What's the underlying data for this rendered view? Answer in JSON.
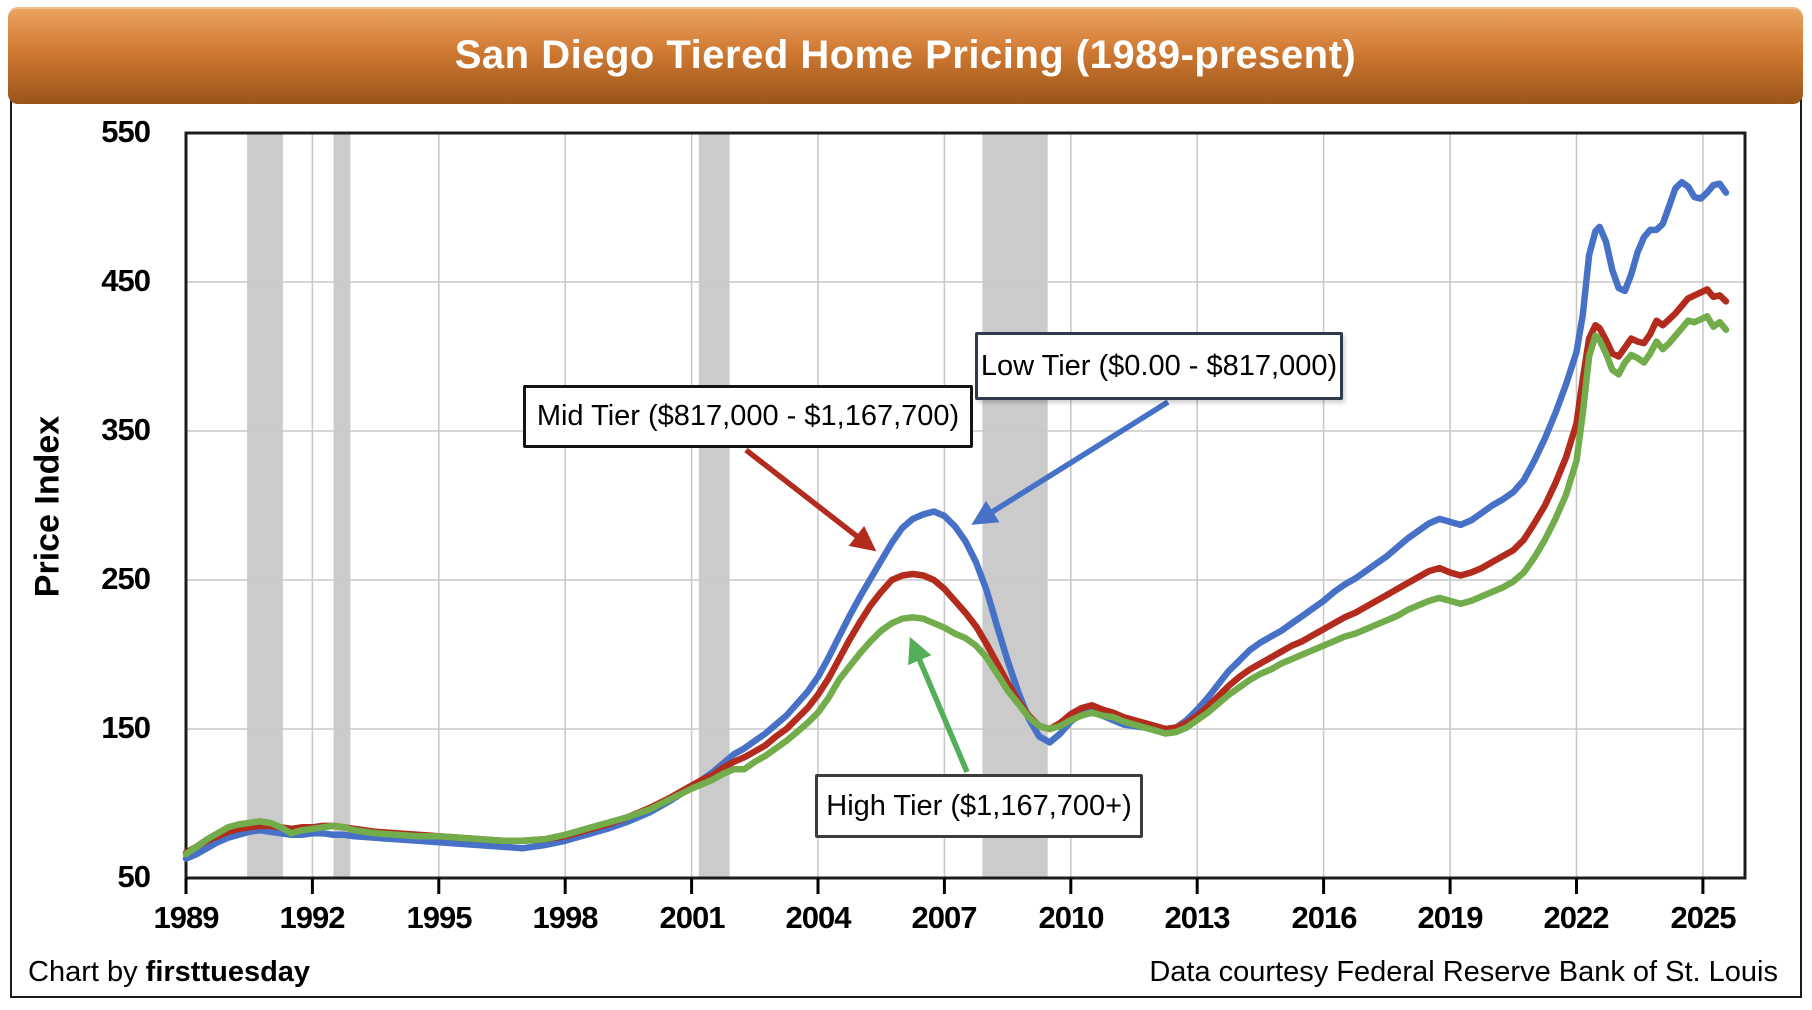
{
  "title": "San Diego Tiered Home Pricing (1989-present)",
  "footer": {
    "left_prefix": "Chart by ",
    "left_brand": "firsttuesday",
    "right": "Data courtesy Federal Reserve Bank of St. Louis"
  },
  "colors": {
    "low": "#4671C6",
    "mid": "#B22B1D",
    "high": "#72AC4B",
    "arrow_green": "#55AF5A",
    "band": "#CBCBCB",
    "grid": "#C9C9C9",
    "frame": "#1C1C1C",
    "banner_top": "#EDA463",
    "banner_mid": "#D07A33",
    "banner_bottom": "#9A5419"
  },
  "chart_data": {
    "type": "line",
    "title": "San Diego Tiered Home Pricing (1989-present)",
    "xlabel": "",
    "ylabel": "Price Index",
    "xlim": [
      1989,
      2026
    ],
    "ylim": [
      50,
      550
    ],
    "x_ticks": [
      1989,
      1992,
      1995,
      1998,
      2001,
      2004,
      2007,
      2010,
      2013,
      2016,
      2019,
      2022,
      2025
    ],
    "y_ticks": [
      50,
      150,
      250,
      350,
      450,
      550
    ],
    "grid": true,
    "legend_position": "annotation-boxes",
    "recession_bands": [
      [
        1990.45,
        1991.3
      ],
      [
        1992.5,
        1992.9
      ],
      [
        2001.17,
        2001.9
      ],
      [
        2007.9,
        2009.45
      ]
    ],
    "series": [
      {
        "key": "low",
        "name": "Low Tier ($0.00 - $817,000)"
      },
      {
        "key": "mid",
        "name": "Mid Tier ($817,000 - $1,167,700)"
      },
      {
        "key": "high",
        "name": "High Tier ($1,167,700+)"
      }
    ],
    "points_format": [
      "year",
      "low",
      "mid",
      "high"
    ],
    "points": [
      [
        1989.0,
        63,
        67,
        66
      ],
      [
        1989.25,
        66,
        71,
        71
      ],
      [
        1989.5,
        70,
        75,
        76
      ],
      [
        1989.75,
        74,
        78,
        80
      ],
      [
        1990.0,
        77,
        81,
        84
      ],
      [
        1990.25,
        79,
        83,
        86
      ],
      [
        1990.5,
        81,
        84,
        87
      ],
      [
        1990.75,
        82,
        85,
        88
      ],
      [
        1991.0,
        81,
        85,
        87
      ],
      [
        1991.25,
        80,
        84,
        84
      ],
      [
        1991.5,
        79,
        83,
        80
      ],
      [
        1991.75,
        79,
        84,
        82
      ],
      [
        1992.0,
        80,
        84,
        83
      ],
      [
        1992.25,
        80,
        85,
        84
      ],
      [
        1992.5,
        79,
        85,
        85
      ],
      [
        1992.75,
        79,
        84,
        84
      ],
      [
        1993.0,
        78,
        83,
        82
      ],
      [
        1993.5,
        77,
        81,
        80
      ],
      [
        1994.0,
        76,
        80,
        79
      ],
      [
        1994.5,
        75,
        79,
        78
      ],
      [
        1995.0,
        74,
        78,
        78
      ],
      [
        1995.5,
        73,
        77,
        77
      ],
      [
        1996.0,
        72,
        76,
        76
      ],
      [
        1996.5,
        71,
        75,
        75
      ],
      [
        1997.0,
        70,
        75,
        75
      ],
      [
        1997.5,
        72,
        76,
        76
      ],
      [
        1998.0,
        75,
        78,
        79
      ],
      [
        1998.5,
        79,
        82,
        83
      ],
      [
        1999.0,
        83,
        86,
        87
      ],
      [
        1999.5,
        88,
        91,
        91
      ],
      [
        2000.0,
        94,
        97,
        96
      ],
      [
        2000.5,
        102,
        104,
        103
      ],
      [
        2001.0,
        111,
        112,
        110
      ],
      [
        2001.25,
        116,
        116,
        113
      ],
      [
        2001.5,
        121,
        119,
        116
      ],
      [
        2001.75,
        127,
        124,
        120
      ],
      [
        2002.0,
        133,
        128,
        123
      ],
      [
        2002.25,
        137,
        131,
        123
      ],
      [
        2002.5,
        142,
        135,
        128
      ],
      [
        2002.75,
        147,
        139,
        132
      ],
      [
        2003.0,
        153,
        145,
        137
      ],
      [
        2003.25,
        159,
        150,
        142
      ],
      [
        2003.5,
        167,
        157,
        148
      ],
      [
        2003.75,
        175,
        164,
        154
      ],
      [
        2004.0,
        185,
        173,
        161
      ],
      [
        2004.25,
        198,
        184,
        171
      ],
      [
        2004.5,
        212,
        197,
        183
      ],
      [
        2004.75,
        226,
        210,
        192
      ],
      [
        2005.0,
        239,
        222,
        201
      ],
      [
        2005.25,
        251,
        233,
        209
      ],
      [
        2005.5,
        263,
        242,
        216
      ],
      [
        2005.75,
        275,
        250,
        221
      ],
      [
        2006.0,
        285,
        253,
        224
      ],
      [
        2006.25,
        291,
        254,
        225
      ],
      [
        2006.5,
        294,
        253,
        224
      ],
      [
        2006.75,
        296,
        250,
        221
      ],
      [
        2007.0,
        293,
        244,
        218
      ],
      [
        2007.25,
        286,
        236,
        214
      ],
      [
        2007.5,
        276,
        228,
        211
      ],
      [
        2007.75,
        262,
        219,
        206
      ],
      [
        2008.0,
        243,
        207,
        198
      ],
      [
        2008.25,
        219,
        194,
        187
      ],
      [
        2008.5,
        196,
        181,
        176
      ],
      [
        2008.75,
        175,
        169,
        167
      ],
      [
        2009.0,
        157,
        159,
        158
      ],
      [
        2009.25,
        145,
        152,
        152
      ],
      [
        2009.5,
        141,
        150,
        150
      ],
      [
        2009.75,
        147,
        154,
        152
      ],
      [
        2010.0,
        155,
        160,
        156
      ],
      [
        2010.25,
        160,
        164,
        159
      ],
      [
        2010.5,
        162,
        166,
        161
      ],
      [
        2010.75,
        159,
        163,
        159
      ],
      [
        2011.0,
        156,
        161,
        158
      ],
      [
        2011.25,
        153,
        158,
        155
      ],
      [
        2011.5,
        152,
        156,
        153
      ],
      [
        2011.75,
        151,
        154,
        151
      ],
      [
        2012.0,
        150,
        152,
        149
      ],
      [
        2012.25,
        149,
        150,
        147
      ],
      [
        2012.5,
        151,
        151,
        148
      ],
      [
        2012.75,
        156,
        154,
        151
      ],
      [
        2013.0,
        163,
        159,
        156
      ],
      [
        2013.25,
        171,
        165,
        161
      ],
      [
        2013.5,
        180,
        172,
        167
      ],
      [
        2013.75,
        189,
        179,
        173
      ],
      [
        2014.0,
        196,
        185,
        178
      ],
      [
        2014.25,
        203,
        190,
        183
      ],
      [
        2014.5,
        208,
        194,
        187
      ],
      [
        2014.75,
        212,
        198,
        190
      ],
      [
        2015.0,
        216,
        202,
        194
      ],
      [
        2015.25,
        221,
        206,
        197
      ],
      [
        2015.5,
        226,
        209,
        200
      ],
      [
        2015.75,
        231,
        213,
        203
      ],
      [
        2016.0,
        236,
        217,
        206
      ],
      [
        2016.25,
        242,
        221,
        209
      ],
      [
        2016.5,
        247,
        225,
        212
      ],
      [
        2016.75,
        251,
        228,
        214
      ],
      [
        2017.0,
        256,
        232,
        217
      ],
      [
        2017.25,
        261,
        236,
        220
      ],
      [
        2017.5,
        266,
        240,
        223
      ],
      [
        2017.75,
        272,
        244,
        226
      ],
      [
        2018.0,
        278,
        248,
        230
      ],
      [
        2018.25,
        283,
        252,
        233
      ],
      [
        2018.5,
        288,
        256,
        236
      ],
      [
        2018.75,
        291,
        258,
        238
      ],
      [
        2019.0,
        289,
        255,
        236
      ],
      [
        2019.25,
        287,
        253,
        234
      ],
      [
        2019.5,
        290,
        255,
        236
      ],
      [
        2019.75,
        295,
        258,
        239
      ],
      [
        2020.0,
        300,
        262,
        242
      ],
      [
        2020.25,
        304,
        266,
        245
      ],
      [
        2020.5,
        309,
        270,
        249
      ],
      [
        2020.75,
        317,
        277,
        255
      ],
      [
        2021.0,
        330,
        288,
        265
      ],
      [
        2021.25,
        345,
        300,
        277
      ],
      [
        2021.5,
        362,
        315,
        291
      ],
      [
        2021.75,
        381,
        332,
        307
      ],
      [
        2022.0,
        403,
        355,
        330
      ],
      [
        2022.15,
        428,
        385,
        362
      ],
      [
        2022.3,
        468,
        412,
        400
      ],
      [
        2022.45,
        484,
        421,
        414
      ],
      [
        2022.55,
        487,
        419,
        411
      ],
      [
        2022.7,
        477,
        411,
        402
      ],
      [
        2022.85,
        458,
        402,
        391
      ],
      [
        2023.0,
        446,
        400,
        388
      ],
      [
        2023.15,
        444,
        406,
        396
      ],
      [
        2023.3,
        455,
        412,
        401
      ],
      [
        2023.45,
        470,
        410,
        399
      ],
      [
        2023.6,
        480,
        409,
        396
      ],
      [
        2023.75,
        485,
        415,
        402
      ],
      [
        2023.9,
        485,
        424,
        410
      ],
      [
        2024.05,
        489,
        421,
        405
      ],
      [
        2024.2,
        501,
        425,
        409
      ],
      [
        2024.35,
        513,
        429,
        414
      ],
      [
        2024.5,
        517,
        434,
        419
      ],
      [
        2024.65,
        514,
        439,
        424
      ],
      [
        2024.8,
        507,
        441,
        423
      ],
      [
        2024.95,
        506,
        443,
        425
      ],
      [
        2025.1,
        510,
        445,
        427
      ],
      [
        2025.25,
        515,
        440,
        420
      ],
      [
        2025.4,
        516,
        441,
        423
      ],
      [
        2025.55,
        510,
        437,
        418
      ]
    ]
  }
}
